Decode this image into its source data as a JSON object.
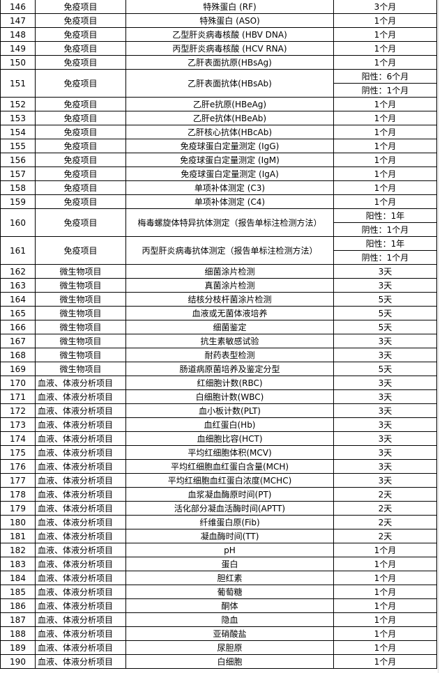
{
  "rows": [
    {
      "no": "146",
      "category": "免疫项目",
      "item": "特殊蛋白 (RF)",
      "period": [
        "3个月"
      ]
    },
    {
      "no": "147",
      "category": "免疫项目",
      "item": "特殊蛋白 (ASO)",
      "period": [
        "1个月"
      ]
    },
    {
      "no": "148",
      "category": "免疫项目",
      "item": "乙型肝炎病毒核酸 (HBV DNA)",
      "period": [
        "1个月"
      ]
    },
    {
      "no": "149",
      "category": "免疫项目",
      "item": "丙型肝炎病毒核酸 (HCV RNA)",
      "period": [
        "1个月"
      ]
    },
    {
      "no": "150",
      "category": "免疫项目",
      "item": "乙肝表面抗原(HBsAg)",
      "period": [
        "1个月"
      ]
    },
    {
      "no": "151",
      "category": "免疫项目",
      "item": "乙肝表面抗体(HBsAb)",
      "period": [
        "阳性：6个月",
        "阴性：1个月"
      ]
    },
    {
      "no": "152",
      "category": "免疫项目",
      "item": "乙肝e抗原(HBeAg)",
      "period": [
        "1个月"
      ]
    },
    {
      "no": "153",
      "category": "免疫项目",
      "item": "乙肝e抗体(HBeAb)",
      "period": [
        "1个月"
      ]
    },
    {
      "no": "154",
      "category": "免疫项目",
      "item": "乙肝核心抗体(HBcAb)",
      "period": [
        "1个月"
      ]
    },
    {
      "no": "155",
      "category": "免疫项目",
      "item": "免疫球蛋白定量测定 (IgG)",
      "period": [
        "1个月"
      ]
    },
    {
      "no": "156",
      "category": "免疫项目",
      "item": "免疫球蛋白定量测定 (IgM)",
      "period": [
        "1个月"
      ]
    },
    {
      "no": "157",
      "category": "免疫项目",
      "item": "免疫球蛋白定量测定 (IgA)",
      "period": [
        "1个月"
      ]
    },
    {
      "no": "158",
      "category": "免疫项目",
      "item": "单项补体测定 (C3)",
      "period": [
        "1个月"
      ]
    },
    {
      "no": "159",
      "category": "免疫项目",
      "item": "单项补体测定 (C4)",
      "period": [
        "1个月"
      ]
    },
    {
      "no": "160",
      "category": "免疫项目",
      "item": "梅毒螺旋体特异抗体测定（报告单标注检测方法）",
      "period": [
        "阳性：1年",
        "阴性：1个月"
      ]
    },
    {
      "no": "161",
      "category": "免疫项目",
      "item": "丙型肝炎病毒抗体测定（报告单标注检测方法）",
      "period": [
        "阳性：1年",
        "阴性：1个月"
      ]
    },
    {
      "no": "162",
      "category": "微生物项目",
      "item": "细菌涂片检测",
      "period": [
        "3天"
      ]
    },
    {
      "no": "163",
      "category": "微生物项目",
      "item": "真菌涂片检测",
      "period": [
        "3天"
      ]
    },
    {
      "no": "164",
      "category": "微生物项目",
      "item": "结核分枝杆菌涂片检测",
      "period": [
        "5天"
      ]
    },
    {
      "no": "165",
      "category": "微生物项目",
      "item": "血液或无菌体液培养",
      "period": [
        "5天"
      ]
    },
    {
      "no": "166",
      "category": "微生物项目",
      "item": "细菌鉴定",
      "period": [
        "5天"
      ]
    },
    {
      "no": "167",
      "category": "微生物项目",
      "item": "抗生素敏感试验",
      "period": [
        "3天"
      ]
    },
    {
      "no": "168",
      "category": "微生物项目",
      "item": "耐药表型检测",
      "period": [
        "3天"
      ]
    },
    {
      "no": "169",
      "category": "微生物项目",
      "item": "肠道病原菌培养及鉴定分型",
      "period": [
        "5天"
      ]
    },
    {
      "no": "170",
      "category": "血液、体液分析项目",
      "item": "红细胞计数(RBC)",
      "period": [
        "3天"
      ]
    },
    {
      "no": "171",
      "category": "血液、体液分析项目",
      "item": "白细胞计数(WBC)",
      "period": [
        "3天"
      ]
    },
    {
      "no": "172",
      "category": "血液、体液分析项目",
      "item": "血小板计数(PLT)",
      "period": [
        "3天"
      ]
    },
    {
      "no": "173",
      "category": "血液、体液分析项目",
      "item": "血红蛋白(Hb)",
      "period": [
        "3天"
      ]
    },
    {
      "no": "174",
      "category": "血液、体液分析项目",
      "item": "血细胞比容(HCT)",
      "period": [
        "3天"
      ]
    },
    {
      "no": "175",
      "category": "血液、体液分析项目",
      "item": "平均红细胞体积(MCV)",
      "period": [
        "3天"
      ]
    },
    {
      "no": "176",
      "category": "血液、体液分析项目",
      "item": "平均红细胞血红蛋白含量(MCH)",
      "period": [
        "3天"
      ]
    },
    {
      "no": "177",
      "category": "血液、体液分析项目",
      "item": "平均红细胞血红蛋白浓度(MCHC)",
      "period": [
        "3天"
      ]
    },
    {
      "no": "178",
      "category": "血液、体液分析项目",
      "item": "血浆凝血酶原时间(PT)",
      "period": [
        "2天"
      ]
    },
    {
      "no": "179",
      "category": "血液、体液分析项目",
      "item": "活化部分凝血活酶时间(APTT)",
      "period": [
        "2天"
      ]
    },
    {
      "no": "180",
      "category": "血液、体液分析项目",
      "item": "纤维蛋白原(Fib)",
      "period": [
        "2天"
      ]
    },
    {
      "no": "181",
      "category": "血液、体液分析项目",
      "item": "凝血酶时间(TT)",
      "period": [
        "2天"
      ]
    },
    {
      "no": "182",
      "category": "血液、体液分析项目",
      "item": "pH",
      "period": [
        "1个月"
      ]
    },
    {
      "no": "183",
      "category": "血液、体液分析项目",
      "item": "蛋白",
      "period": [
        "1个月"
      ]
    },
    {
      "no": "184",
      "category": "血液、体液分析项目",
      "item": "胆红素",
      "period": [
        "1个月"
      ]
    },
    {
      "no": "185",
      "category": "血液、体液分析项目",
      "item": "葡萄糖",
      "period": [
        "1个月"
      ]
    },
    {
      "no": "186",
      "category": "血液、体液分析项目",
      "item": "酮体",
      "period": [
        "1个月"
      ]
    },
    {
      "no": "187",
      "category": "血液、体液分析项目",
      "item": "隐血",
      "period": [
        "1个月"
      ]
    },
    {
      "no": "188",
      "category": "血液、体液分析项目",
      "item": "亚硝酸盐",
      "period": [
        "1个月"
      ]
    },
    {
      "no": "189",
      "category": "血液、体液分析项目",
      "item": "尿胆原",
      "period": [
        "1个月"
      ]
    },
    {
      "no": "190",
      "category": "血液、体液分析项目",
      "item": "白细胞",
      "period": [
        "1个月"
      ]
    }
  ]
}
